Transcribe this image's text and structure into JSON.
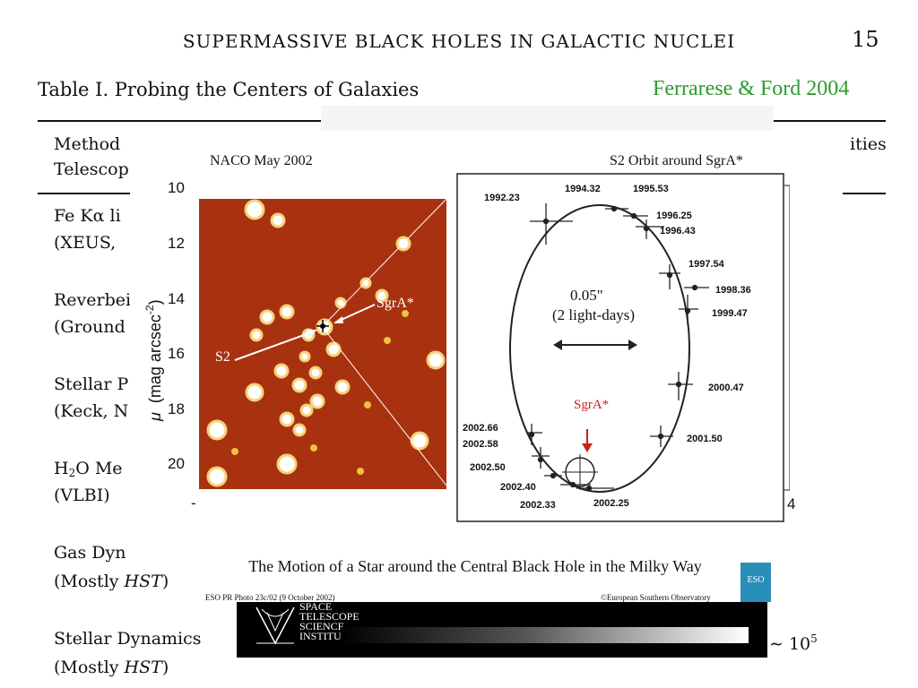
{
  "header": {
    "running_head": "SUPERMASSIVE BLACK HOLES IN GALACTIC NUCLEI",
    "page_number": "15",
    "table_title": "Table I.  Probing the Centers of Galaxies",
    "credit": "Ferrarese & Ford 2004"
  },
  "table": {
    "col1_header": [
      "Method",
      "Telescop"
    ],
    "col_right_header": "ities",
    "rows": [
      {
        "method": "Fe Kα li",
        "telescope": "(XEUS,"
      },
      {
        "method": "Reverbei",
        "telescope": "(Ground"
      },
      {
        "method": "Stellar P",
        "telescope": "(Keck, N"
      },
      {
        "method_prefix": "H",
        "method_sub": "2",
        "method_suffix": "O Me",
        "telescope": "(VLBI)"
      },
      {
        "method": "Gas Dyn",
        "telescope_prefix": "(Mostly ",
        "telescope_italic": "HST",
        "telescope_suffix": ")"
      },
      {
        "method": "Stellar Dynamics",
        "telescope_prefix": "(Mostly ",
        "telescope_italic": "HST",
        "telescope_suffix": ")",
        "density": "∼ 10",
        "density_exp": "5"
      }
    ]
  },
  "figure": {
    "left_panel": {
      "title": "NACO May 2002",
      "label_sgra": "SgrA*",
      "label_s2": "S2",
      "y_axis": {
        "symbol": "μ",
        "label": "(mag arcsec",
        "label_exp": "-2",
        "label_close": ")"
      },
      "y_ticks": [
        "10",
        "12",
        "14",
        "16",
        "18",
        "20"
      ],
      "x_tick_left": "-"
    },
    "right_panel": {
      "title": "S2 Orbit around SgrA*",
      "scale_value": "0.05\"",
      "scale_desc": "(2 light-days)",
      "sgra_label": "SgrA*",
      "x_tick_right": "4",
      "epochs": [
        "1992.23",
        "1994.32",
        "1995.53",
        "1996.25",
        "1996.43",
        "1997.54",
        "1998.36",
        "1999.47",
        "2000.47",
        "2001.50",
        "2002.66",
        "2002.58",
        "2002.50",
        "2002.40",
        "2002.33",
        "2002.25"
      ]
    },
    "caption": "The Motion of a Star around the Central Black Hole in the Milky Way",
    "photo_id": "ESO PR Photo 23c/02 (9 October 2002)",
    "copyright": "©European Southern Observatory",
    "eso_logo_text": "ESO"
  },
  "footer_logo": {
    "lines": [
      "SPACE",
      "TELESCOPE",
      "SCIENCE",
      "INSTITUTE"
    ]
  },
  "colors": {
    "credit_green": "#2e9b2e",
    "image_red": "#a8320f",
    "sgra_red": "#c8201c",
    "eso_blue": "#2a8fb8"
  }
}
